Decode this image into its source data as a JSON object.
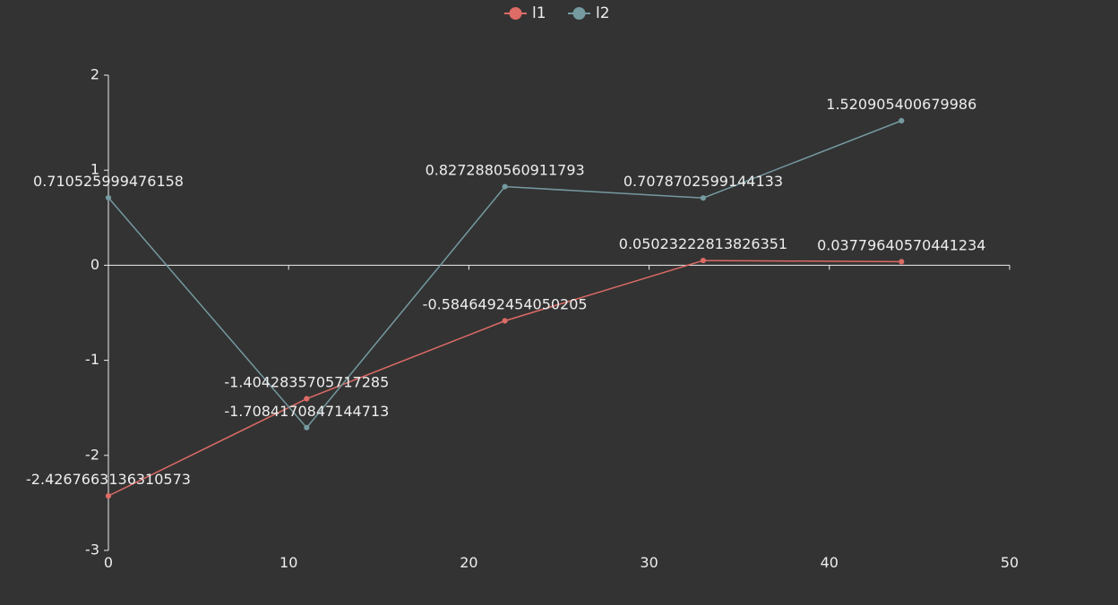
{
  "chart_data": {
    "type": "line",
    "xlim": [
      0,
      50
    ],
    "ylim": [
      -3,
      2
    ],
    "x_ticks": [
      0,
      10,
      20,
      30,
      40,
      50
    ],
    "y_ticks": [
      2,
      1,
      0,
      -1,
      -2,
      -3
    ],
    "x_tick_labels": [
      "0",
      "10",
      "20",
      "30",
      "40",
      "50"
    ],
    "y_tick_labels": [
      "2",
      "1",
      "0",
      "-1",
      "-2",
      "-3"
    ],
    "grid": false,
    "legend_position": "top-center",
    "series": [
      {
        "name": "l1",
        "color": "#dd6b66",
        "points": [
          {
            "x": 0,
            "y": -2.4267663136310573,
            "label": "-2.4267663136310573"
          },
          {
            "x": 11,
            "y": -1.4042835705717285,
            "label": "-1.4042835705717285"
          },
          {
            "x": 22,
            "y": -0.5846492454050205,
            "label": "-0.5846492454050205"
          },
          {
            "x": 33,
            "y": 0.05023222813826351,
            "label": "0.05023222813826351"
          },
          {
            "x": 44,
            "y": 0.03779640570441234,
            "label": "0.03779640570441234"
          }
        ]
      },
      {
        "name": "l2",
        "color": "#759aa0",
        "points": [
          {
            "x": 0,
            "y": 0.710525999476158,
            "label": "0.710525999476158"
          },
          {
            "x": 11,
            "y": -1.7084170847144713,
            "label": "-1.7084170847144713"
          },
          {
            "x": 22,
            "y": 0.8272880560911793,
            "label": "0.8272880560911793"
          },
          {
            "x": 33,
            "y": 0.7078702599144133,
            "label": "0.7078702599144133"
          },
          {
            "x": 44,
            "y": 1.520905400679986,
            "label": "1.520905400679986"
          }
        ]
      }
    ]
  }
}
